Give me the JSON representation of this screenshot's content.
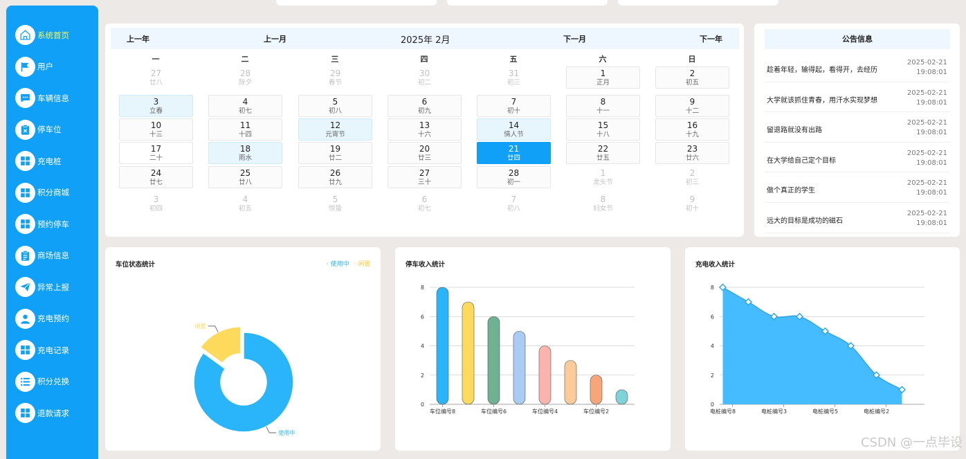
{
  "sidebar": {
    "items": [
      {
        "label": "系统首页",
        "icon": "home-icon",
        "active": true
      },
      {
        "label": "用户",
        "icon": "flag-icon"
      },
      {
        "label": "车辆信息",
        "icon": "chat-icon"
      },
      {
        "label": "停车位",
        "icon": "clipboard-x-icon"
      },
      {
        "label": "充电桩",
        "icon": "grid-icon"
      },
      {
        "label": "积分商城",
        "icon": "grid-icon"
      },
      {
        "label": "预约停车",
        "icon": "grid-icon"
      },
      {
        "label": "商场信息",
        "icon": "clipboard-icon"
      },
      {
        "label": "异常上报",
        "icon": "paper-plane-icon"
      },
      {
        "label": "充电预约",
        "icon": "user-icon"
      },
      {
        "label": "充电记录",
        "icon": "grid-icon"
      },
      {
        "label": "积分兑换",
        "icon": "list-icon"
      },
      {
        "label": "退款请求",
        "icon": "grid-icon"
      }
    ]
  },
  "calendar": {
    "prev_year": "上一年",
    "prev_month": "上一月",
    "title": "2025年 2月",
    "next_month": "下一月",
    "next_year": "下一年",
    "weekdays": [
      "一",
      "二",
      "三",
      "四",
      "五",
      "六",
      "日"
    ],
    "weeks": [
      [
        {
          "n": "27",
          "l": "廿八",
          "s": "other"
        },
        {
          "n": "28",
          "l": "除夕",
          "s": "other"
        },
        {
          "n": "29",
          "l": "春节",
          "s": "other"
        },
        {
          "n": "30",
          "l": "初二",
          "s": "other"
        },
        {
          "n": "31",
          "l": "初三",
          "s": "other"
        },
        {
          "n": "1",
          "l": "正月",
          "s": "cur"
        },
        {
          "n": "2",
          "l": "初五",
          "s": "cur"
        }
      ],
      [
        {
          "n": "3",
          "l": "立春",
          "s": "hl"
        },
        {
          "n": "4",
          "l": "初七",
          "s": "cur"
        },
        {
          "n": "5",
          "l": "初八",
          "s": "cur"
        },
        {
          "n": "6",
          "l": "初九",
          "s": "cur"
        },
        {
          "n": "7",
          "l": "初十",
          "s": "cur"
        },
        {
          "n": "8",
          "l": "十一",
          "s": "cur"
        },
        {
          "n": "9",
          "l": "十二",
          "s": "cur"
        }
      ],
      [
        {
          "n": "10",
          "l": "十三",
          "s": "cur"
        },
        {
          "n": "11",
          "l": "十四",
          "s": "cur"
        },
        {
          "n": "12",
          "l": "元宵节",
          "s": "hl"
        },
        {
          "n": "13",
          "l": "十六",
          "s": "cur"
        },
        {
          "n": "14",
          "l": "情人节",
          "s": "hl"
        },
        {
          "n": "15",
          "l": "十八",
          "s": "cur"
        },
        {
          "n": "16",
          "l": "十九",
          "s": "cur"
        }
      ],
      [
        {
          "n": "17",
          "l": "二十",
          "s": "plain"
        },
        {
          "n": "18",
          "l": "雨水",
          "s": "hl"
        },
        {
          "n": "19",
          "l": "廿二",
          "s": "cur"
        },
        {
          "n": "20",
          "l": "廿三",
          "s": "cur"
        },
        {
          "n": "21",
          "l": "廿四",
          "s": "sel"
        },
        {
          "n": "22",
          "l": "廿五",
          "s": "cur"
        },
        {
          "n": "23",
          "l": "廿六",
          "s": "cur"
        }
      ],
      [
        {
          "n": "24",
          "l": "廿七",
          "s": "cur"
        },
        {
          "n": "25",
          "l": "廿八",
          "s": "cur"
        },
        {
          "n": "26",
          "l": "廿九",
          "s": "cur"
        },
        {
          "n": "27",
          "l": "三十",
          "s": "cur"
        },
        {
          "n": "28",
          "l": "初一",
          "s": "cur"
        },
        {
          "n": "1",
          "l": "龙头节",
          "s": "other"
        },
        {
          "n": "2",
          "l": "初三",
          "s": "other"
        }
      ],
      [
        {
          "n": "3",
          "l": "初四",
          "s": "other"
        },
        {
          "n": "4",
          "l": "初五",
          "s": "other"
        },
        {
          "n": "5",
          "l": "惊蛰",
          "s": "other"
        },
        {
          "n": "6",
          "l": "初七",
          "s": "other"
        },
        {
          "n": "7",
          "l": "初八",
          "s": "other"
        },
        {
          "n": "8",
          "l": "妇女节",
          "s": "other"
        },
        {
          "n": "9",
          "l": "初十",
          "s": "other"
        }
      ]
    ]
  },
  "notices": {
    "title": "公告信息",
    "items": [
      {
        "title": "趁着年轻，输得起，看得开，去经历",
        "date": "2025-02-21",
        "time": "19:08:01"
      },
      {
        "title": "大学就该抓住青春，用汗水实现梦想",
        "date": "2025-02-21",
        "time": "19:08:01"
      },
      {
        "title": "留退路就没有出路",
        "date": "2025-02-21",
        "time": "19:08:01"
      },
      {
        "title": "在大学给自己定个目标",
        "date": "2025-02-21",
        "time": "19:08:01"
      },
      {
        "title": "做个真正的学生",
        "date": "2025-02-21",
        "time": "19:08:01"
      },
      {
        "title": "远大的目标是成功的磁石",
        "date": "2025-02-21",
        "time": "19:08:01"
      }
    ]
  },
  "chart_data": [
    {
      "type": "pie",
      "title": "车位状态统计",
      "legend": [
        "使用中",
        "闲置"
      ],
      "legend_position": "top-right",
      "slices": [
        {
          "name": "使用中",
          "value": 85
        },
        {
          "name": "闲置",
          "value": 15
        }
      ],
      "colors": [
        "#2ab5fb",
        "#fdd95c"
      ]
    },
    {
      "type": "bar",
      "title": "停车收入统计",
      "categories": [
        "车位编号8",
        "",
        "车位编号6",
        "",
        "车位编号4",
        "",
        "车位编号2",
        ""
      ],
      "values": [
        8,
        7,
        6,
        5,
        4,
        3,
        2,
        1
      ],
      "ylim": [
        0,
        8
      ],
      "yticks": [
        "0",
        "2",
        "4",
        "6",
        "8"
      ],
      "grid": true,
      "colors": [
        "#2ab5fb",
        "#fdd95c",
        "#6fb193",
        "#aacbf4",
        "#f9b5ad",
        "#fccb99",
        "#f8a57a",
        "#7fd2d8"
      ]
    },
    {
      "type": "area",
      "title": "充电收入统计",
      "categories": [
        "电桩编号8",
        "",
        "电桩编号3",
        "",
        "电桩编号5",
        "",
        "电桩编号2",
        ""
      ],
      "values": [
        8,
        7,
        6,
        6,
        5,
        4,
        2,
        1
      ],
      "ylim": [
        0,
        8
      ],
      "yticks": [
        "0",
        "2",
        "4",
        "6",
        "8"
      ],
      "grid": true,
      "color": "#45bcff",
      "line_color": "#2aa3ea"
    }
  ],
  "watermark": "CSDN @一点毕设"
}
